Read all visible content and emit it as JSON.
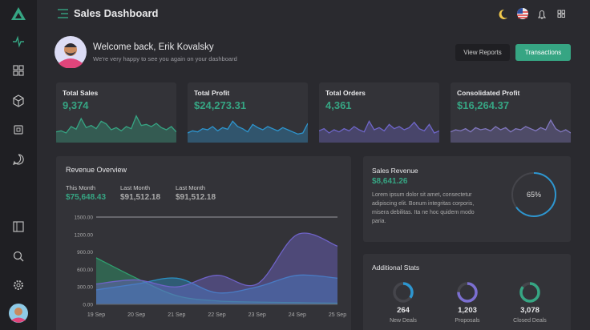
{
  "header": {
    "title": "Sales Dashboard"
  },
  "welcome": {
    "title": "Welcome back, Erik Kovalsky",
    "subtitle": "We're very happy to see you again on your dashboard",
    "buttons": [
      "View Reports",
      "Transactions"
    ]
  },
  "chart_data": [
    {
      "type": "area",
      "title": "Total Sales",
      "subtitle": "9,374",
      "color": "#36a583",
      "ylim": [
        0,
        60
      ],
      "values": [
        20,
        22,
        18,
        30,
        25,
        45,
        28,
        32,
        26,
        40,
        35,
        24,
        28,
        22,
        30,
        26,
        50,
        32,
        34,
        30,
        36,
        28,
        24,
        30,
        20
      ]
    },
    {
      "type": "area",
      "title": "Total Profit",
      "subtitle": "$24,273.31",
      "color": "#2d96d0",
      "ylim": [
        0,
        60
      ],
      "values": [
        18,
        22,
        20,
        26,
        24,
        30,
        22,
        28,
        25,
        40,
        30,
        26,
        20,
        34,
        28,
        24,
        30,
        26,
        22,
        28,
        24,
        20,
        16,
        18,
        36
      ]
    },
    {
      "type": "area",
      "title": "Total Orders",
      "subtitle": "4,361",
      "color": "#6f66c9",
      "ylim": [
        0,
        60
      ],
      "values": [
        22,
        26,
        18,
        24,
        20,
        26,
        22,
        30,
        24,
        20,
        40,
        24,
        28,
        22,
        34,
        26,
        30,
        24,
        28,
        38,
        26,
        22,
        34,
        18,
        22
      ]
    },
    {
      "type": "area",
      "title": "Consolidated Profit",
      "subtitle": "$16,264.37",
      "color": "#8278c0",
      "ylim": [
        0,
        60
      ],
      "values": [
        20,
        24,
        22,
        26,
        20,
        28,
        24,
        26,
        22,
        30,
        24,
        28,
        20,
        26,
        24,
        30,
        26,
        22,
        28,
        24,
        42,
        26,
        20,
        24,
        18
      ]
    },
    {
      "type": "area",
      "title": "Revenue Overview",
      "summary": [
        {
          "label": "This Month",
          "value": "$75,648.43"
        },
        {
          "label": "Last Month",
          "value": "$91,512.18"
        },
        {
          "label": "Last Month",
          "value": "$91,512.18"
        }
      ],
      "categories": [
        "19 Sep",
        "20 Sep",
        "21 Sep",
        "22 Sep",
        "23 Sep",
        "24 Sep",
        "25 Sep"
      ],
      "ylim": [
        0,
        1500
      ],
      "yticks": [
        {
          "value": 0,
          "label": "0.00"
        },
        {
          "value": 300,
          "label": "300.00"
        },
        {
          "value": 600,
          "label": "600.00"
        },
        {
          "value": 900,
          "label": "900.00"
        },
        {
          "value": 1200,
          "label": "1200.00"
        },
        {
          "value": 1500,
          "label": "1500.00"
        }
      ],
      "series": [
        {
          "color": "#2f9e6e",
          "values": [
            800,
            450,
            150,
            60,
            40,
            30,
            20
          ]
        },
        {
          "color": "#2a8fc2",
          "values": [
            250,
            350,
            450,
            200,
            300,
            500,
            450
          ]
        },
        {
          "color": "#6f63c8",
          "values": [
            350,
            420,
            300,
            500,
            350,
            1200,
            1000
          ]
        }
      ]
    },
    {
      "type": "donut",
      "title": "Sales Revenue",
      "subtitle": "$8,641.26",
      "text": "Lorem ipsum dolor sit amet, consectetur adipiscing elit. Bonum integritas corporis, misera debilitas. Ita ne hoc quidem modo paria.",
      "values": [
        65
      ],
      "value_labels": [
        "65%"
      ],
      "color": "#2d96d0"
    }
  ],
  "additional_stats": {
    "title": "Additional Stats",
    "items": [
      {
        "value": "264",
        "label": "New Deals",
        "progress": 35,
        "color": "#2d96d0"
      },
      {
        "value": "1,203",
        "label": "Proposals",
        "progress": 75,
        "color": "#7b6fd1"
      },
      {
        "value": "3,078",
        "label": "Closed Deals",
        "progress": 85,
        "color": "#36a583"
      }
    ]
  }
}
